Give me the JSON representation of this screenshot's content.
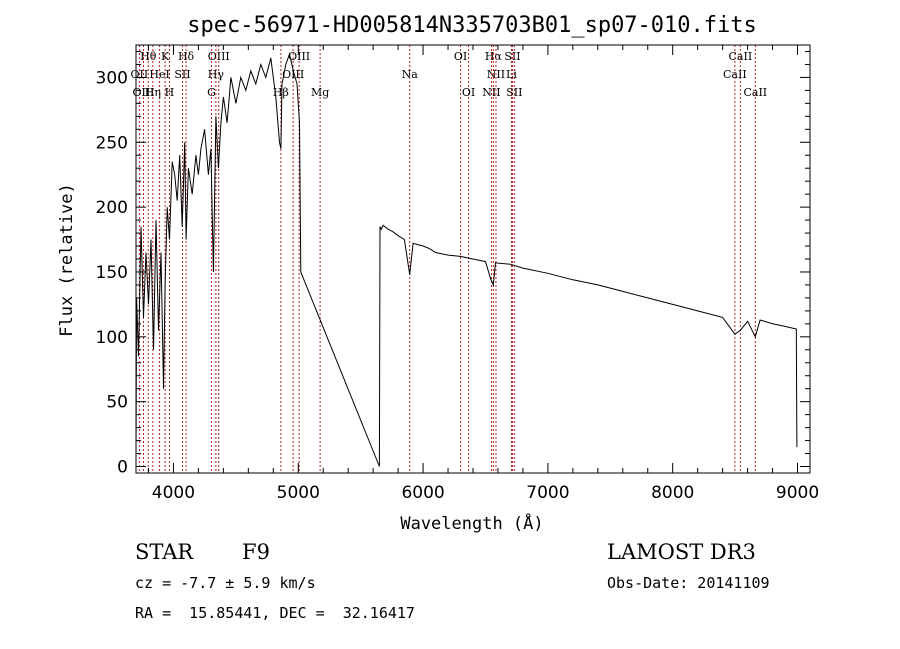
{
  "chart_data": {
    "type": "line",
    "title": "spec-56971-HD005814N335703B01_sp07-010.fits",
    "xlabel": "Wavelength (Å)",
    "ylabel": "Flux (relative)",
    "xlim": [
      3700,
      9100
    ],
    "ylim": [
      -5,
      325
    ],
    "xticks": [
      4000,
      5000,
      6000,
      7000,
      8000,
      9000
    ],
    "yticks": [
      0,
      50,
      100,
      150,
      200,
      250,
      300
    ],
    "series": [
      {
        "name": "flux",
        "x": [
          3700,
          3705,
          3720,
          3740,
          3760,
          3780,
          3800,
          3820,
          3840,
          3860,
          3880,
          3900,
          3920,
          3933,
          3950,
          3968,
          3990,
          4010,
          4030,
          4050,
          4070,
          4090,
          4101,
          4120,
          4150,
          4180,
          4200,
          4220,
          4250,
          4280,
          4300,
          4320,
          4340,
          4360,
          4380,
          4400,
          4430,
          4460,
          4500,
          4540,
          4580,
          4620,
          4660,
          4700,
          4740,
          4780,
          4820,
          4850,
          4861,
          4870,
          4900,
          4930,
          4960,
          4990,
          5010,
          5020,
          5650,
          5655,
          5665,
          5680,
          5720,
          5760,
          5800,
          5850,
          5893,
          5920,
          6000,
          6050,
          6100,
          6200,
          6300,
          6400,
          6500,
          6540,
          6563,
          6580,
          6700,
          6800,
          7000,
          7200,
          7400,
          7600,
          7800,
          8000,
          8200,
          8400,
          8498,
          8542,
          8600,
          8662,
          8700,
          8800,
          8900,
          8990,
          8995
        ],
        "y": [
          5,
          130,
          85,
          185,
          115,
          165,
          125,
          175,
          90,
          190,
          105,
          165,
          60,
          140,
          200,
          175,
          235,
          225,
          205,
          240,
          185,
          250,
          175,
          230,
          210,
          240,
          225,
          245,
          260,
          225,
          245,
          150,
          270,
          230,
          265,
          285,
          265,
          300,
          280,
          300,
          290,
          305,
          295,
          310,
          300,
          315,
          285,
          250,
          245,
          295,
          310,
          318,
          305,
          295,
          265,
          150,
          0,
          185,
          183,
          186,
          183,
          181,
          178,
          175,
          148,
          172,
          170,
          168,
          165,
          163,
          162,
          160,
          158,
          145,
          140,
          157,
          156,
          153,
          149,
          144,
          140,
          135,
          130,
          125,
          120,
          115,
          102,
          105,
          112,
          100,
          113,
          110,
          108,
          106,
          15
        ]
      }
    ],
    "spectral_lines": [
      {
        "label": "Hθ",
        "x": 3798,
        "row": 0
      },
      {
        "label": "K",
        "x": 3933,
        "row": 0
      },
      {
        "label": "Hδ",
        "x": 4101,
        "row": 0
      },
      {
        "label": "OIII",
        "x": 4363,
        "row": 0
      },
      {
        "label": "OIII",
        "x": 5007,
        "row": 0
      },
      {
        "label": "OI",
        "x": 6300,
        "row": 0
      },
      {
        "label": "Hα",
        "x": 6563,
        "row": 0
      },
      {
        "label": "SII",
        "x": 6716,
        "row": 0
      },
      {
        "label": "CaII",
        "x": 8542,
        "row": 0
      },
      {
        "label": "OII",
        "x": 3727,
        "row": 1
      },
      {
        "label": "HeI",
        "x": 3889,
        "row": 1
      },
      {
        "label": "SII",
        "x": 4072,
        "row": 1
      },
      {
        "label": "Hγ",
        "x": 4340,
        "row": 1
      },
      {
        "label": "OIII",
        "x": 4959,
        "row": 1
      },
      {
        "label": "Na",
        "x": 5893,
        "row": 1
      },
      {
        "label": "NII",
        "x": 6584,
        "row": 1
      },
      {
        "label": "Li",
        "x": 6708,
        "row": 1
      },
      {
        "label": "CaII",
        "x": 8498,
        "row": 1
      },
      {
        "label": "OIII",
        "x": 3760,
        "row": 2
      },
      {
        "label": "Hη",
        "x": 3835,
        "row": 2
      },
      {
        "label": "H",
        "x": 3968,
        "row": 2
      },
      {
        "label": "G",
        "x": 4305,
        "row": 2
      },
      {
        "label": "Hβ",
        "x": 4861,
        "row": 2
      },
      {
        "label": "Mg",
        "x": 5175,
        "row": 2
      },
      {
        "label": "OI",
        "x": 6364,
        "row": 2
      },
      {
        "label": "NII",
        "x": 6548,
        "row": 2
      },
      {
        "label": "SII",
        "x": 6731,
        "row": 2
      },
      {
        "label": "CaII",
        "x": 8662,
        "row": 2
      }
    ]
  },
  "info": {
    "object_class": "STAR",
    "subclass": "F9",
    "survey": "LAMOST DR3",
    "cz": "cz = -7.7 ± 5.9 km/s",
    "obs_date": "Obs-Date: 20141109",
    "coords": "RA =  15.85441, DEC =  32.16417"
  }
}
